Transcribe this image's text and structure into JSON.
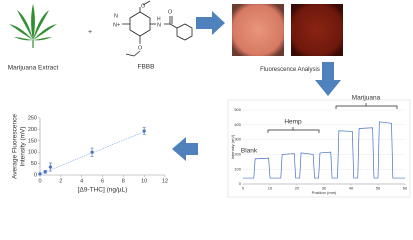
{
  "reactants": {
    "extract_label": "Marijuana Extract",
    "plus": "+",
    "reagent_label": "FBBB"
  },
  "structure": {
    "atoms": [
      "N",
      "N+",
      "O",
      "O",
      "H",
      "N",
      "O"
    ]
  },
  "process_label": "Fluorescence Analysis",
  "chart_data": [
    {
      "type": "scatter",
      "y_label": [
        "Average Fluorescence",
        "Intensity (mV)"
      ],
      "x_label": "[Δ9-THC] (ng/µL)",
      "x": [
        0,
        0.5,
        1,
        5,
        10
      ],
      "values": [
        5,
        14,
        35,
        100,
        193
      ],
      "errors": [
        3,
        6,
        18,
        18,
        15
      ],
      "color": "#4472c4",
      "trendline": {
        "x": [
          0,
          10
        ],
        "values": [
          4,
          190
        ],
        "color": "#8db3e2"
      },
      "xlim": [
        0,
        12
      ],
      "ylim": [
        0,
        250
      ],
      "xticks": [
        0,
        2,
        4,
        6,
        8,
        10,
        12
      ],
      "yticks": [
        0,
        50,
        100,
        150,
        200,
        250
      ],
      "grid": false
    },
    {
      "type": "line",
      "y_label": "Intensity (mV)",
      "x_label": "Position (mm)",
      "annotations": [
        "Blank",
        "Hemp",
        "Marijuana"
      ],
      "x": [
        0,
        4,
        4.5,
        9.5,
        10,
        14,
        14.5,
        19,
        19.5,
        21,
        21.5,
        26,
        26.5,
        28,
        28.5,
        32.5,
        33,
        35,
        35.5,
        40.5,
        41,
        42.5,
        43,
        48,
        48.5,
        50,
        50.5,
        55,
        55.5,
        60
      ],
      "values": [
        40,
        40,
        170,
        175,
        40,
        40,
        200,
        205,
        40,
        40,
        210,
        200,
        40,
        40,
        210,
        215,
        40,
        40,
        360,
        355,
        40,
        40,
        375,
        380,
        40,
        40,
        420,
        410,
        40,
        40
      ],
      "color": "#4472c4",
      "xlim": [
        0,
        60
      ],
      "ylim": [
        0,
        500
      ],
      "xticks": [
        0,
        10,
        20,
        30,
        40,
        50,
        60
      ],
      "yticks": [
        0,
        100,
        200,
        300,
        400,
        500
      ],
      "grid": true
    }
  ]
}
